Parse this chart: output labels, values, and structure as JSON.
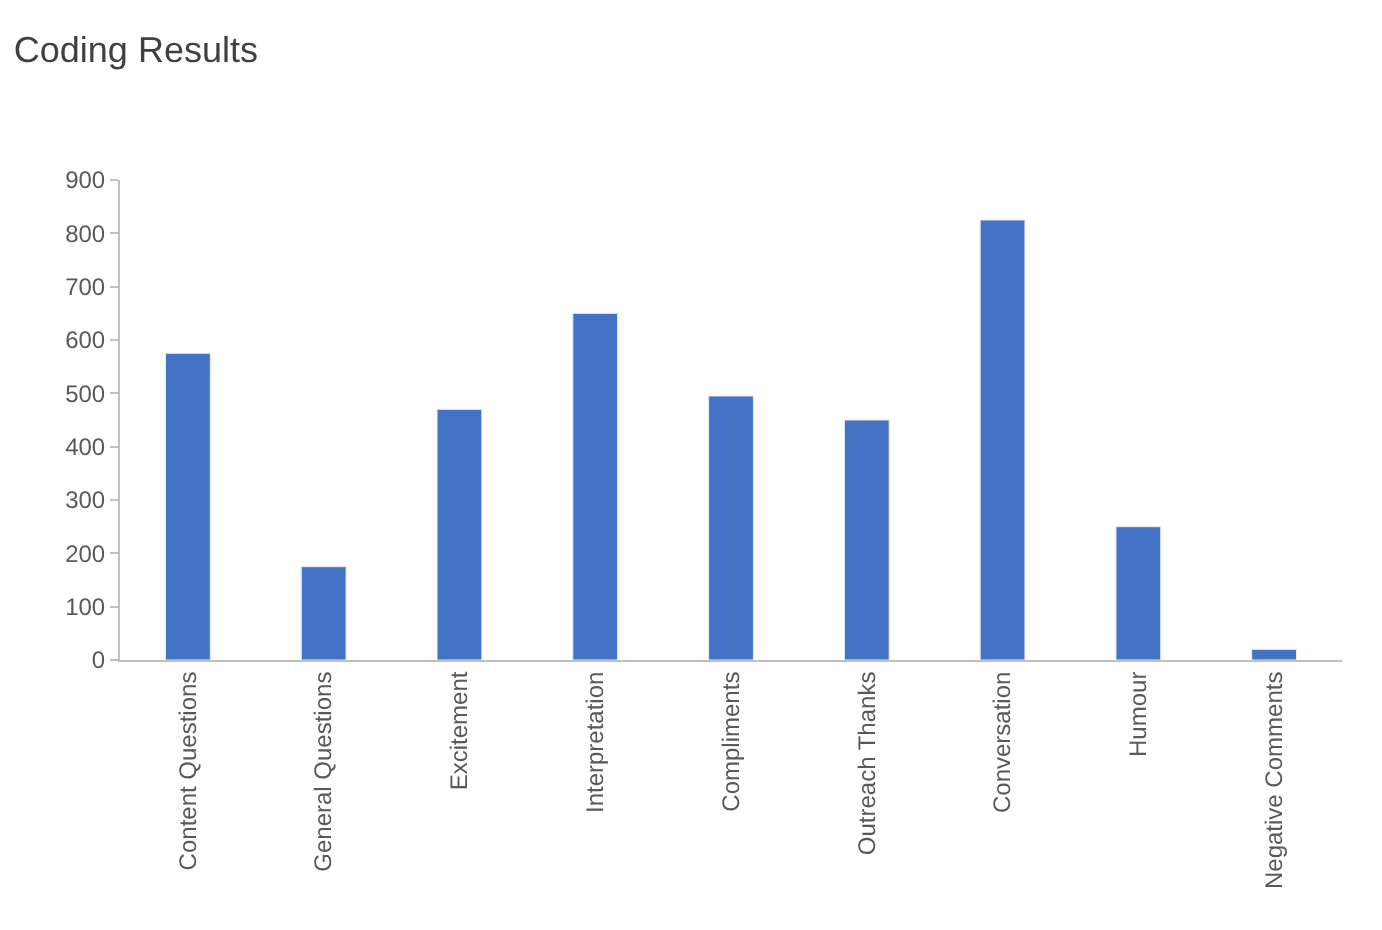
{
  "chart_data": {
    "type": "bar",
    "title": "Coding Results",
    "categories": [
      "Content Questions",
      "General Questions",
      "Excitement",
      "Interpretation",
      "Compliments",
      "Outreach Thanks",
      "Conversation",
      "Humour",
      "Negative Comments"
    ],
    "values": [
      575,
      175,
      470,
      650,
      495,
      450,
      825,
      250,
      20
    ],
    "color": "#4472c4",
    "ylim": [
      0,
      900
    ],
    "yticks": [
      0,
      100,
      200,
      300,
      400,
      500,
      600,
      700,
      800,
      900
    ],
    "grid": false,
    "legend": false
  }
}
